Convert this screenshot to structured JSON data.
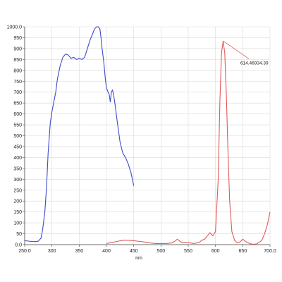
{
  "chart_data": {
    "type": "line",
    "xlabel": "nm",
    "ylabel": "",
    "xlim": [
      250,
      700
    ],
    "ylim": [
      0,
      1000
    ],
    "grid": true,
    "x_ticks": [
      "250.0",
      "300",
      "350",
      "400",
      "450",
      "500",
      "550",
      "600",
      "650",
      "700.0"
    ],
    "y_ticks": [
      "0.0",
      "50",
      "100",
      "150",
      "200",
      "250",
      "300",
      "350",
      "400",
      "450",
      "500",
      "550",
      "600",
      "650",
      "700",
      "750",
      "800",
      "850",
      "900",
      "950",
      "1000.0"
    ],
    "colors": {
      "excitation": "#3b4bc8",
      "emission": "#e05a5a",
      "grid": "#d9d9d9",
      "axis": "#444444"
    },
    "series": [
      {
        "key": "excitation",
        "x": [
          250,
          255,
          260,
          265,
          270,
          275,
          280,
          283,
          287,
          290,
          293,
          297,
          300,
          303,
          307,
          310,
          315,
          320,
          325,
          330,
          335,
          340,
          345,
          350,
          355,
          360,
          365,
          370,
          375,
          378,
          382,
          385,
          388,
          390,
          392,
          395,
          398,
          400,
          403,
          405,
          407,
          409,
          411,
          413,
          416,
          420,
          425,
          430,
          435,
          440,
          445,
          450
        ],
        "y": [
          18,
          17,
          15,
          15,
          14,
          16,
          30,
          70,
          150,
          260,
          420,
          560,
          610,
          650,
          700,
          760,
          820,
          860,
          875,
          870,
          855,
          860,
          850,
          855,
          850,
          860,
          900,
          940,
          970,
          990,
          1000,
          1000,
          990,
          950,
          900,
          840,
          760,
          720,
          700,
          690,
          655,
          700,
          710,
          690,
          640,
          560,
          470,
          420,
          400,
          370,
          330,
          270
        ]
      },
      {
        "key": "emission",
        "x": [
          400,
          410,
          420,
          430,
          440,
          450,
          460,
          470,
          480,
          490,
          500,
          510,
          520,
          525,
          530,
          535,
          540,
          550,
          560,
          570,
          575,
          580,
          585,
          590,
          595,
          600,
          605,
          608,
          611,
          614,
          617,
          620,
          623,
          626,
          630,
          635,
          640,
          645,
          650,
          655,
          660,
          665,
          670,
          675,
          680,
          685,
          690,
          695,
          700
        ],
        "y": [
          5,
          10,
          15,
          20,
          20,
          18,
          15,
          12,
          8,
          5,
          5,
          5,
          8,
          15,
          25,
          15,
          8,
          10,
          5,
          10,
          20,
          25,
          40,
          55,
          40,
          60,
          300,
          650,
          880,
          934,
          880,
          680,
          420,
          200,
          60,
          20,
          8,
          12,
          25,
          15,
          8,
          3,
          2,
          3,
          10,
          20,
          50,
          90,
          150
        ]
      }
    ],
    "annotations": [
      {
        "x": 614.46,
        "y": 934.39,
        "text": "614.46934.39"
      }
    ]
  }
}
